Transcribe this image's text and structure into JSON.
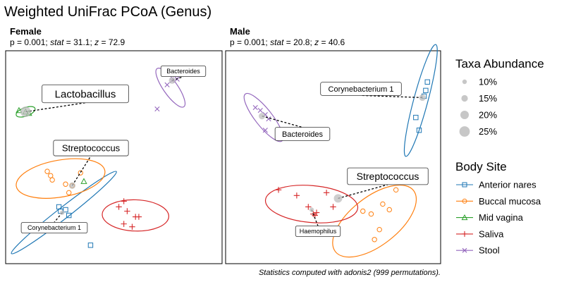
{
  "chart_data": {
    "type": "scatter",
    "title": "Weighted UniFrac PCoA (Genus)",
    "caption": "Statistics computed with adonis2 (999 permutations).",
    "panels": [
      {
        "name": "Female",
        "stats": {
          "p": "0.001",
          "stat": "31.1",
          "z": "72.9"
        },
        "series": [
          {
            "name": "Anterior nares",
            "points": [
              [
                -0.28,
                -0.3
              ],
              [
                -0.27,
                -0.33
              ],
              [
                -0.24,
                -0.32
              ],
              [
                -0.22,
                -0.36
              ],
              [
                -0.09,
                -0.57
              ]
            ],
            "ellipse": {
              "cx": -0.25,
              "cy": -0.34,
              "rx": 0.4,
              "ry": 0.04,
              "angle": 38
            }
          },
          {
            "name": "Buccal mucosa",
            "points": [
              [
                -0.35,
                -0.05
              ],
              [
                -0.33,
                -0.08
              ],
              [
                -0.32,
                -0.11
              ],
              [
                -0.2,
                -0.15
              ],
              [
                -0.24,
                -0.14
              ],
              [
                -0.15,
                -0.06
              ],
              [
                -0.22,
                -0.2
              ]
            ],
            "ellipse": {
              "cx": -0.27,
              "cy": -0.1,
              "rx": 0.27,
              "ry": 0.13,
              "angle": 10
            }
          },
          {
            "name": "Mid vagina",
            "points": [
              [
                -0.52,
                0.38
              ],
              [
                -0.48,
                0.37
              ],
              [
                -0.46,
                0.36
              ],
              [
                -0.13,
                -0.12
              ]
            ],
            "ellipse": {
              "cx": -0.48,
              "cy": 0.37,
              "rx": 0.06,
              "ry": 0.03,
              "angle": 20
            }
          },
          {
            "name": "Saliva",
            "points": [
              [
                0.08,
                -0.3
              ],
              [
                0.13,
                -0.33
              ],
              [
                0.11,
                -0.26
              ],
              [
                0.18,
                -0.37
              ],
              [
                0.11,
                -0.42
              ],
              [
                0.2,
                -0.37
              ],
              [
                0.16,
                -0.44
              ]
            ],
            "ellipse": {
              "cx": 0.18,
              "cy": -0.36,
              "rx": 0.2,
              "ry": 0.11,
              "angle": -2
            }
          },
          {
            "name": "Stool",
            "points": [
              [
                0.37,
                0.56
              ],
              [
                0.4,
                0.59
              ],
              [
                0.42,
                0.63
              ],
              [
                0.43,
                0.6
              ],
              [
                0.31,
                0.39
              ]
            ],
            "ellipse": {
              "cx": 0.39,
              "cy": 0.54,
              "rx": 0.14,
              "ry": 0.05,
              "angle": -55
            }
          }
        ],
        "taxa": [
          {
            "label": "Bacteroides",
            "x": 0.4,
            "y": 0.59,
            "abundance": 15
          },
          {
            "label": "Lactobacillus",
            "x": -0.48,
            "y": 0.37,
            "abundance": 25
          },
          {
            "label": "Streptococcus",
            "x": -0.2,
            "y": -0.15,
            "abundance": 15
          },
          {
            "label": "Corynebacterium 1",
            "x": -0.26,
            "y": -0.34,
            "abundance": 10
          }
        ]
      },
      {
        "name": "Male",
        "stats": {
          "p": "0.001",
          "stat": "20.8",
          "z": "40.6"
        },
        "series": [
          {
            "name": "Anterior nares",
            "points": [
              [
                0.62,
                0.58
              ],
              [
                0.61,
                0.52
              ],
              [
                0.6,
                0.48
              ],
              [
                0.55,
                0.33
              ],
              [
                0.57,
                0.24
              ]
            ],
            "ellipse": {
              "cx": 0.58,
              "cy": 0.45,
              "rx": 0.35,
              "ry": 0.05,
              "angle": 75
            }
          },
          {
            "name": "Buccal mucosa",
            "points": [
              [
                0.28,
                -0.35
              ],
              [
                0.35,
                -0.28
              ],
              [
                0.39,
                -0.32
              ],
              [
                0.43,
                -0.18
              ],
              [
                0.33,
                -0.46
              ],
              [
                0.3,
                -0.53
              ],
              [
                0.23,
                -0.33
              ]
            ],
            "ellipse": {
              "cx": 0.3,
              "cy": -0.4,
              "rx": 0.3,
              "ry": 0.17,
              "angle": 38
            }
          },
          {
            "name": "Mid vagina",
            "points": [],
            "ellipse": null
          },
          {
            "name": "Saliva",
            "points": [
              [
                -0.28,
                -0.18
              ],
              [
                -0.1,
                -0.3
              ],
              [
                0.01,
                -0.2
              ],
              [
                -0.17,
                -0.22
              ],
              [
                -0.05,
                -0.34
              ],
              [
                -0.07,
                -0.35
              ],
              [
                0.05,
                -0.3
              ],
              [
                -0.06,
                -0.36
              ]
            ],
            "ellipse": {
              "cx": -0.08,
              "cy": -0.28,
              "rx": 0.28,
              "ry": 0.13,
              "angle": -5
            }
          },
          {
            "name": "Stool",
            "points": [
              [
                -0.42,
                0.4
              ],
              [
                -0.39,
                0.38
              ],
              [
                -0.36,
                0.35
              ],
              [
                -0.34,
                0.32
              ],
              [
                -0.36,
                0.24
              ]
            ],
            "ellipse": {
              "cx": -0.37,
              "cy": 0.33,
              "rx": 0.18,
              "ry": 0.06,
              "angle": -52
            }
          }
        ],
        "taxa": [
          {
            "label": "Corynebacterium 1",
            "x": 0.59,
            "y": 0.47,
            "abundance": 15
          },
          {
            "label": "Bacteroides",
            "x": -0.38,
            "y": 0.34,
            "abundance": 15
          },
          {
            "label": "Streptococcus",
            "x": 0.08,
            "y": -0.24,
            "abundance": 20
          },
          {
            "label": "Haemophilus",
            "x": -0.08,
            "y": -0.32,
            "abundance": 10
          }
        ]
      }
    ],
    "legend_abundance": {
      "title": "Taxa Abundance",
      "items": [
        "10%",
        "15%",
        "20%",
        "25%"
      ],
      "values": [
        10,
        15,
        20,
        25
      ]
    },
    "legend_site": {
      "title": "Body Site",
      "items": [
        {
          "name": "Anterior nares",
          "color": "#1f77b4",
          "shape": "square"
        },
        {
          "name": "Buccal mucosa",
          "color": "#ff7f0e",
          "shape": "circle"
        },
        {
          "name": "Mid vagina",
          "color": "#2ca02c",
          "shape": "triangle"
        },
        {
          "name": "Saliva",
          "color": "#d62728",
          "shape": "plus"
        },
        {
          "name": "Stool",
          "color": "#9467bd",
          "shape": "cross"
        }
      ]
    },
    "xlim": [
      -0.6,
      0.7
    ],
    "ylim": [
      -0.7,
      0.8
    ],
    "grid": false,
    "legend_position": "right"
  }
}
